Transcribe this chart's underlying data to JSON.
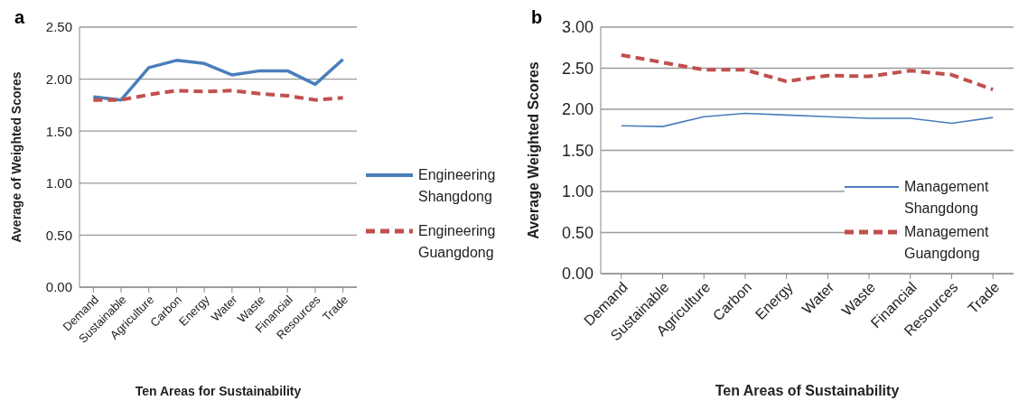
{
  "chart_data": [
    {
      "type": "line",
      "title": "a",
      "xlabel": "Ten Areas for Sustainability",
      "ylabel": "Average of Weighted Scores",
      "categories": [
        "Demand",
        "Sustainable",
        "Agriculture",
        "Carbon",
        "Energy",
        "Water",
        "Waste",
        "Financial",
        "Resources",
        "Trade"
      ],
      "series": [
        {
          "name": "Engineering Shangdong",
          "color": "#4a7ebb",
          "line_style": "solid",
          "values": [
            1.83,
            1.8,
            2.11,
            2.18,
            2.15,
            2.04,
            2.08,
            2.08,
            1.95,
            2.19
          ]
        },
        {
          "name": "Engineering Guangdong",
          "color": "#c0504d",
          "line_style": "dashed",
          "values": [
            1.8,
            1.8,
            1.85,
            1.89,
            1.88,
            1.89,
            1.86,
            1.84,
            1.8,
            1.82
          ]
        }
      ],
      "ylim": [
        0,
        2.5
      ],
      "yticks": [
        {
          "value": 0,
          "label": "0.00"
        },
        {
          "value": 0.5,
          "label": "0.50"
        },
        {
          "value": 1,
          "label": "1.00"
        },
        {
          "value": 1.5,
          "label": "1.50"
        },
        {
          "value": 2,
          "label": "2.00"
        },
        {
          "value": 2.5,
          "label": "2.50"
        }
      ],
      "grid": "y",
      "legend": "right",
      "marker": "none"
    },
    {
      "type": "line",
      "title": "b",
      "xlabel": "Ten Areas of Sustainability",
      "ylabel": "Average  Weighted Scores",
      "categories": [
        "Demand",
        "Sustainable",
        "Agriculture",
        "Carbon",
        "Energy",
        "Water",
        "Waste",
        "Financial",
        "Resources",
        "Trade"
      ],
      "series": [
        {
          "name": "Management Shangdong",
          "color": "#4a7ebb",
          "line_style": "solid",
          "values": [
            1.8,
            1.79,
            1.91,
            1.95,
            1.93,
            1.91,
            1.89,
            1.89,
            1.83,
            1.9
          ]
        },
        {
          "name": "Management Guangdong",
          "color": "#c0504d",
          "line_style": "dashed",
          "values": [
            2.66,
            2.57,
            2.48,
            2.48,
            2.34,
            2.41,
            2.4,
            2.47,
            2.42,
            2.24
          ]
        }
      ],
      "ylim": [
        0,
        3
      ],
      "yticks": [
        {
          "value": 0,
          "label": "0.00"
        },
        {
          "value": 0.5,
          "label": "0.50"
        },
        {
          "value": 1,
          "label": "1.00"
        },
        {
          "value": 1.5,
          "label": "1.50"
        },
        {
          "value": 2,
          "label": "2.00"
        },
        {
          "value": 2.5,
          "label": "2.50"
        },
        {
          "value": 3,
          "label": "3.00"
        }
      ],
      "grid": "y",
      "legend": "bottom right",
      "marker": "none"
    }
  ]
}
